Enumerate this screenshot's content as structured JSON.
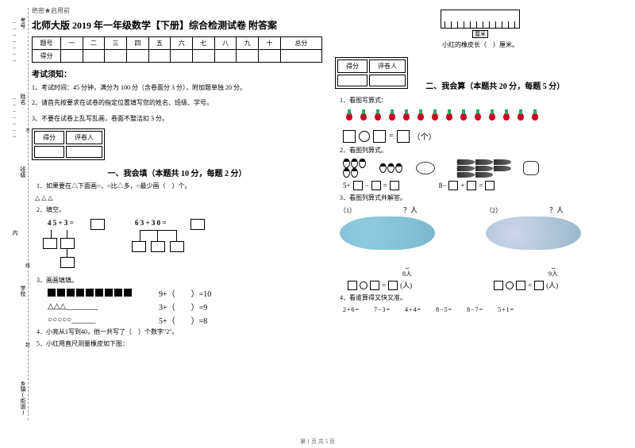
{
  "side": {
    "l1": "考号",
    "l1b": "：",
    "l2": "姓名",
    "l2b": "：",
    "l3": "班级",
    "l4": "内",
    "l5": "学校",
    "l6": "乡镇(街道)",
    "dash1": "不",
    "dash2": "线",
    "dash3": "封"
  },
  "secret": "绝密★启用前",
  "title": "北师大版 2019 年一年级数学【下册】综合检测试卷 附答案",
  "scoreHead": [
    "题号",
    "一",
    "二",
    "三",
    "四",
    "五",
    "六",
    "七",
    "八",
    "九",
    "十",
    "总分"
  ],
  "scoreRow": "得分",
  "noticeTitle": "考试须知：",
  "notices": [
    "1、考试时间：45 分钟，满分为 100 分（含卷面分 3 分），附加题单独 20 分。",
    "2、请首先按要求在试卷的指定位置填写您的姓名、班级、学号。",
    "3、不要在试卷上乱写乱画，卷面不整洁扣 3 分。"
  ],
  "scoreBox": [
    "得分",
    "评卷人"
  ],
  "section1": "一、我会填（本题共 10 分，每题 2 分）",
  "q1_1": "1．如果要在△下面画○，○比△多，○最少画（　）个。",
  "q1_1tri": "△ △ △",
  "q1_2": "2．填空。",
  "calc1": "4 5 + 3 =",
  "calc2": "6 3 + 3 0 =",
  "q1_3": "3．画画填填。",
  "eq_a": "9+（　　）=10",
  "eq_b": "3+（　　）=9",
  "eq_c": "5+（　　）=8",
  "q1_4": "4．小亮从1写到40，他一共写了（　）个数字\"2\"。",
  "q1_5": "5．小红用直尺测量橡皮如下图：",
  "rulerLabel": "厘米",
  "rulerText": "小红的橡皮长（　）厘米。",
  "section2": "二、我会算（本题共 20 分，每题 5 分）",
  "q2_1": "1．看图写算式：",
  "unit1": "（个）",
  "q2_2": "2．看图列算式。",
  "eq2a_pre": "5+",
  "eq2a_mid": "−",
  "eq2a_eq": "=",
  "eq2b_pre": "8−",
  "eq2b_mid": "+",
  "eq2b_eq": "=",
  "q2_3": "3．看图列算式并解答。",
  "sub1": "（1）",
  "sub2": "（2）",
  "qm": "？人",
  "brace1": "8人",
  "brace2": "9人",
  "unit2": "(人)",
  "q2_4": "4．看谁算得又快又准。",
  "chain": "2+6=　　7−3=　　4+4=　　8−5=　　8−7=　　5+1=",
  "footer": "第 1 页 共 5 页"
}
